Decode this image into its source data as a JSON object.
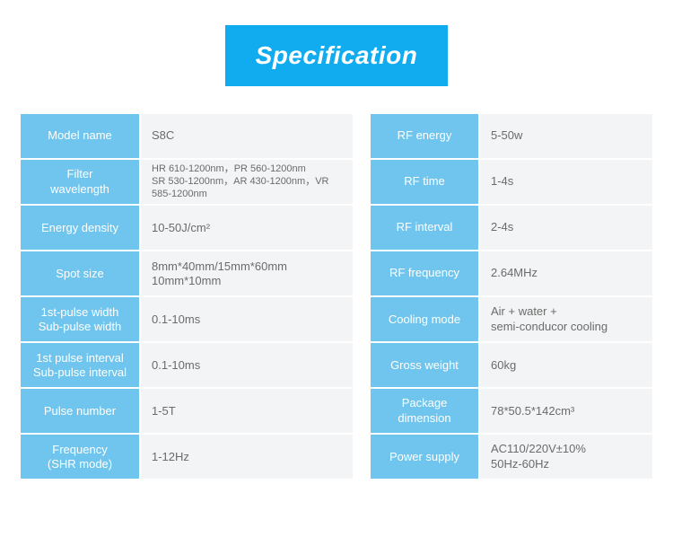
{
  "colors": {
    "title_bg": "#11abef",
    "label_bg_left": "#6fc5ed",
    "label_bg_right": "#6fc5ed",
    "value_bg": "#f2f4f5",
    "title_text": "#ffffff",
    "value_text": "#6b6b6b"
  },
  "title": "Specification",
  "left": [
    {
      "label": "Model name",
      "value": "S8C"
    },
    {
      "label": "Filter\nwavelength",
      "value": "HR 610-1200nm，PR 560-1200nm\nSR 530-1200nm，AR 430-1200nm，VR 585-1200nm",
      "cls": "fw"
    },
    {
      "label": "Energy density",
      "value": "10-50J/cm²"
    },
    {
      "label": "Spot size",
      "value": "8mm*40mm/15mm*60mm\n10mm*10mm"
    },
    {
      "label": "1st-pulse width\nSub-pulse width",
      "value": "0.1-10ms"
    },
    {
      "label": "1st pulse interval\nSub-pulse interval",
      "value": "0.1-10ms"
    },
    {
      "label": "Pulse number",
      "value": "1-5T"
    },
    {
      "label": "Frequency\n(SHR mode)",
      "value": "1-12Hz"
    }
  ],
  "right": [
    {
      "label": "RF energy",
      "value": "5-50w"
    },
    {
      "label": "RF time",
      "value": "1-4s"
    },
    {
      "label": "RF interval",
      "value": "2-4s"
    },
    {
      "label": "RF frequency",
      "value": "2.64MHz"
    },
    {
      "label": "Cooling mode",
      "value": "Air + water +\nsemi-conducor cooling"
    },
    {
      "label": "Gross weight",
      "value": "60kg"
    },
    {
      "label": "Package\ndimension",
      "value": "78*50.5*142cm³"
    },
    {
      "label": "Power supply",
      "value": "AC110/220V±10%\n50Hz-60Hz"
    }
  ]
}
